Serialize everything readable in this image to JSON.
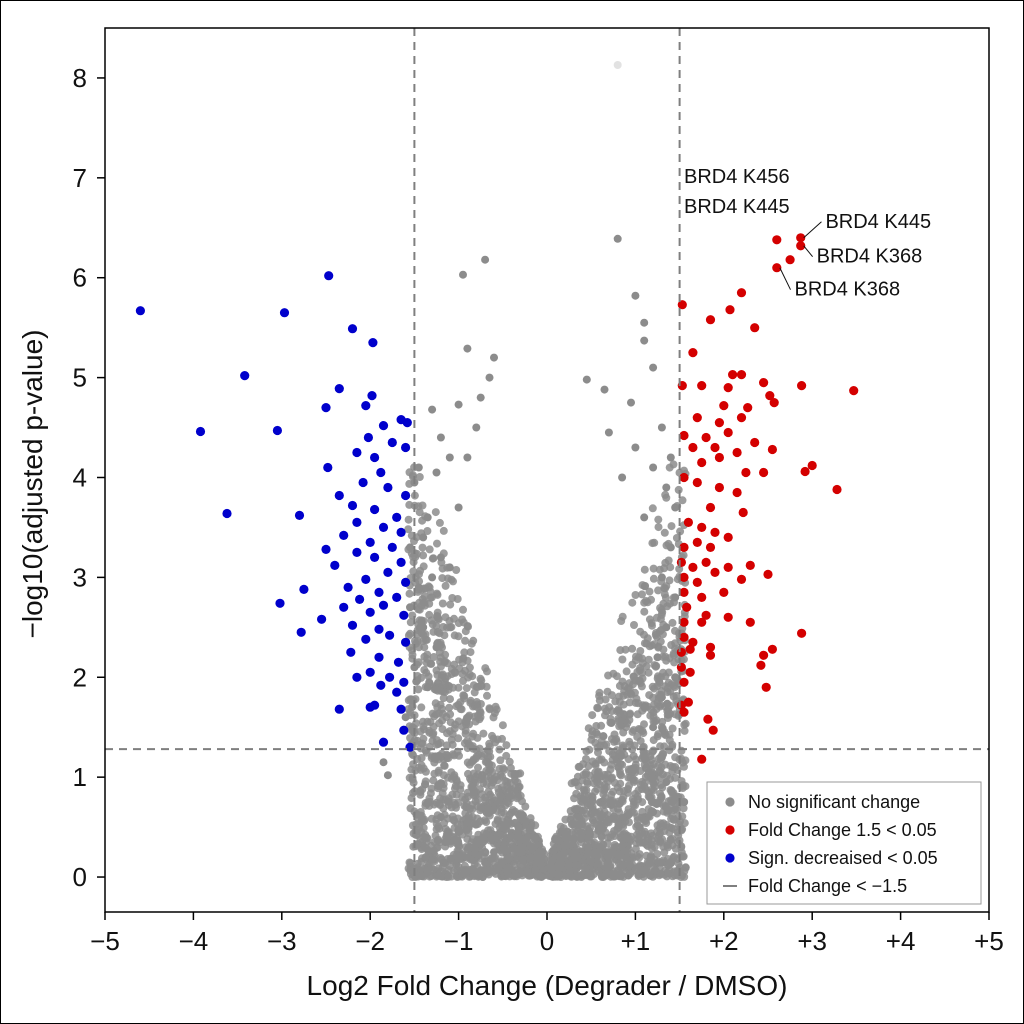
{
  "chart_data": {
    "type": "scatter",
    "title": "",
    "xlabel": "Log2 Fold Change (Degrader / DMSO)",
    "ylabel": "−log10(adjusted p-value)",
    "xlim": [
      -5,
      5
    ],
    "ylim": [
      -0.35,
      8.5
    ],
    "x_ticks": [
      -5,
      -4,
      -3,
      -2,
      -1,
      0,
      1,
      2,
      3,
      4,
      5
    ],
    "x_tick_labels": [
      "−5",
      "−4",
      "−3",
      "−2",
      "−1",
      "0",
      "+1",
      "+2",
      "+3",
      "+4",
      "+5"
    ],
    "y_ticks": [
      0,
      1,
      2,
      3,
      4,
      5,
      6,
      7,
      8
    ],
    "y_tick_labels": [
      "0",
      "1",
      "2",
      "3",
      "4",
      "5",
      "6",
      "7",
      "8"
    ],
    "thresholds": {
      "x_left": -1.5,
      "x_right": 1.5,
      "y": 1.28
    },
    "grid": false,
    "legend_position": "bottom-right",
    "colors": {
      "ns": "#8c8c8c",
      "up": "#d40000",
      "down": "#0000cc",
      "threshold": "#7f7f7f"
    },
    "series": [
      {
        "name": "No significant change",
        "points": [
          [
            -0.95,
            6.03
          ],
          [
            -0.7,
            6.18
          ],
          [
            -0.9,
            5.29
          ],
          [
            -0.6,
            5.2
          ],
          [
            -1.3,
            4.68
          ],
          [
            -0.65,
            5.0
          ],
          [
            -0.75,
            4.8
          ],
          [
            -1.0,
            4.73
          ],
          [
            -0.8,
            4.5
          ],
          [
            -1.2,
            4.4
          ],
          [
            -1.1,
            4.2
          ],
          [
            -0.9,
            4.2
          ],
          [
            -1.45,
            4.1
          ],
          [
            -1.25,
            4.05
          ],
          [
            -1.5,
            3.95
          ],
          [
            -1.35,
            3.6
          ],
          [
            -1.0,
            3.7
          ],
          [
            -1.55,
            3.3
          ],
          [
            -1.4,
            3.4
          ],
          [
            -1.2,
            3.2
          ],
          [
            -1.1,
            3.1
          ],
          [
            -1.3,
            3.0
          ],
          [
            -1.45,
            2.9
          ],
          [
            -1.55,
            2.7
          ],
          [
            -1.4,
            2.5
          ],
          [
            -1.25,
            2.3
          ],
          [
            -1.5,
            2.1
          ],
          [
            -1.35,
            1.9
          ],
          [
            -1.6,
            1.6
          ],
          [
            -1.8,
            1.02
          ],
          [
            -1.85,
            1.15
          ],
          [
            -1.2,
            0.6
          ],
          [
            -1.15,
            0.35
          ],
          [
            -1.0,
            0.45
          ],
          [
            -0.9,
            0.55
          ],
          [
            -0.6,
            0.25
          ],
          [
            0.8,
            8.13
          ],
          [
            0.8,
            6.39
          ],
          [
            1.0,
            5.82
          ],
          [
            1.1,
            5.55
          ],
          [
            1.1,
            5.37
          ],
          [
            1.2,
            5.1
          ],
          [
            0.45,
            4.98
          ],
          [
            0.65,
            4.88
          ],
          [
            0.95,
            4.75
          ],
          [
            0.7,
            4.45
          ],
          [
            1.3,
            4.5
          ],
          [
            1.0,
            4.3
          ],
          [
            1.4,
            4.2
          ],
          [
            1.2,
            4.1
          ],
          [
            0.85,
            4.0
          ],
          [
            1.35,
            3.9
          ],
          [
            1.45,
            3.7
          ],
          [
            1.1,
            3.6
          ],
          [
            1.4,
            3.3
          ],
          [
            1.3,
            3.0
          ],
          [
            1.45,
            2.8
          ],
          [
            1.35,
            2.5
          ],
          [
            1.25,
            2.2
          ],
          [
            1.45,
            2.0
          ],
          [
            1.3,
            1.8
          ],
          [
            1.2,
            1.5
          ],
          [
            1.3,
            1.2
          ],
          [
            1.35,
            0.95
          ],
          [
            1.42,
            0.75
          ],
          [
            1.55,
            0.75
          ],
          [
            1.2,
            0.65
          ],
          [
            1.05,
            0.5
          ],
          [
            0.9,
            0.4
          ],
          [
            0.6,
            0.3
          ],
          [
            0.35,
            0.2
          ],
          [
            0.25,
            0.12
          ]
        ]
      },
      {
        "name": "Fold Change 1.5 < 0.05",
        "points": [
          [
            2.6,
            6.38
          ],
          [
            2.87,
            6.4
          ],
          [
            2.87,
            6.32
          ],
          [
            2.75,
            6.18
          ],
          [
            2.6,
            6.1
          ],
          [
            1.53,
            5.73
          ],
          [
            2.2,
            5.85
          ],
          [
            2.07,
            5.68
          ],
          [
            1.85,
            5.58
          ],
          [
            2.35,
            5.5
          ],
          [
            1.65,
            5.25
          ],
          [
            2.1,
            5.03
          ],
          [
            2.2,
            5.03
          ],
          [
            1.53,
            4.92
          ],
          [
            1.75,
            4.92
          ],
          [
            2.05,
            4.9
          ],
          [
            2.45,
            4.95
          ],
          [
            2.88,
            4.92
          ],
          [
            3.47,
            4.87
          ],
          [
            2.0,
            4.72
          ],
          [
            2.27,
            4.7
          ],
          [
            2.52,
            4.82
          ],
          [
            2.57,
            4.75
          ],
          [
            1.7,
            4.6
          ],
          [
            1.95,
            4.55
          ],
          [
            2.2,
            4.6
          ],
          [
            1.55,
            4.42
          ],
          [
            1.8,
            4.4
          ],
          [
            2.05,
            4.45
          ],
          [
            2.35,
            4.35
          ],
          [
            1.65,
            4.3
          ],
          [
            1.9,
            4.3
          ],
          [
            2.15,
            4.25
          ],
          [
            2.55,
            4.28
          ],
          [
            1.75,
            4.15
          ],
          [
            1.95,
            4.2
          ],
          [
            2.25,
            4.05
          ],
          [
            2.45,
            4.05
          ],
          [
            3.0,
            4.12
          ],
          [
            2.92,
            4.06
          ],
          [
            3.28,
            3.88
          ],
          [
            1.55,
            4.0
          ],
          [
            1.7,
            3.95
          ],
          [
            1.95,
            3.9
          ],
          [
            2.15,
            3.85
          ],
          [
            1.85,
            3.7
          ],
          [
            2.22,
            3.65
          ],
          [
            1.6,
            3.55
          ],
          [
            1.75,
            3.5
          ],
          [
            1.9,
            3.45
          ],
          [
            2.05,
            3.4
          ],
          [
            1.55,
            3.3
          ],
          [
            1.7,
            3.35
          ],
          [
            1.85,
            3.3
          ],
          [
            1.52,
            3.15
          ],
          [
            1.65,
            3.1
          ],
          [
            1.8,
            3.15
          ],
          [
            2.05,
            3.1
          ],
          [
            2.3,
            3.12
          ],
          [
            1.55,
            3.0
          ],
          [
            1.7,
            2.95
          ],
          [
            1.9,
            3.05
          ],
          [
            2.2,
            2.98
          ],
          [
            2.5,
            3.03
          ],
          [
            1.55,
            2.85
          ],
          [
            1.75,
            2.8
          ],
          [
            2.0,
            2.85
          ],
          [
            1.58,
            2.7
          ],
          [
            1.8,
            2.62
          ],
          [
            1.55,
            2.55
          ],
          [
            1.75,
            2.55
          ],
          [
            2.05,
            2.6
          ],
          [
            2.3,
            2.55
          ],
          [
            1.55,
            2.4
          ],
          [
            1.65,
            2.35
          ],
          [
            2.88,
            2.44
          ],
          [
            1.52,
            2.25
          ],
          [
            1.62,
            2.28
          ],
          [
            1.85,
            2.3
          ],
          [
            2.45,
            2.22
          ],
          [
            2.55,
            2.28
          ],
          [
            1.52,
            2.1
          ],
          [
            1.62,
            2.05
          ],
          [
            1.85,
            2.22
          ],
          [
            2.42,
            2.12
          ],
          [
            1.55,
            1.95
          ],
          [
            1.6,
            1.75
          ],
          [
            1.55,
            1.65
          ],
          [
            1.52,
            1.72
          ],
          [
            2.48,
            1.9
          ],
          [
            1.82,
            1.58
          ],
          [
            1.88,
            1.47
          ],
          [
            1.75,
            1.18
          ]
        ]
      },
      {
        "name": "Sign. decreaised < 0.05",
        "points": [
          [
            -4.6,
            5.67
          ],
          [
            -2.47,
            6.02
          ],
          [
            -2.97,
            5.65
          ],
          [
            -2.2,
            5.49
          ],
          [
            -1.97,
            5.35
          ],
          [
            -3.42,
            5.02
          ],
          [
            -2.35,
            4.89
          ],
          [
            -3.92,
            4.46
          ],
          [
            -3.05,
            4.47
          ],
          [
            -2.5,
            4.7
          ],
          [
            -2.05,
            4.72
          ],
          [
            -1.98,
            4.82
          ],
          [
            -1.65,
            4.58
          ],
          [
            -1.58,
            4.55
          ],
          [
            -1.85,
            4.52
          ],
          [
            -2.02,
            4.4
          ],
          [
            -1.75,
            4.35
          ],
          [
            -2.15,
            4.25
          ],
          [
            -1.95,
            4.2
          ],
          [
            -1.6,
            4.3
          ],
          [
            -2.48,
            4.1
          ],
          [
            -1.88,
            4.05
          ],
          [
            -2.08,
            3.95
          ],
          [
            -1.8,
            3.9
          ],
          [
            -2.35,
            3.82
          ],
          [
            -1.6,
            3.82
          ],
          [
            -2.2,
            3.72
          ],
          [
            -1.95,
            3.68
          ],
          [
            -1.7,
            3.6
          ],
          [
            -3.62,
            3.64
          ],
          [
            -2.8,
            3.62
          ],
          [
            -2.15,
            3.55
          ],
          [
            -1.85,
            3.5
          ],
          [
            -1.65,
            3.45
          ],
          [
            -2.3,
            3.42
          ],
          [
            -2.0,
            3.35
          ],
          [
            -1.75,
            3.3
          ],
          [
            -2.5,
            3.28
          ],
          [
            -2.15,
            3.25
          ],
          [
            -1.95,
            3.2
          ],
          [
            -1.65,
            3.15
          ],
          [
            -2.4,
            3.12
          ],
          [
            -1.8,
            3.05
          ],
          [
            -2.05,
            2.98
          ],
          [
            -1.6,
            2.95
          ],
          [
            -2.25,
            2.9
          ],
          [
            -1.9,
            2.85
          ],
          [
            -2.75,
            2.88
          ],
          [
            -1.7,
            2.8
          ],
          [
            -2.12,
            2.78
          ],
          [
            -1.85,
            2.72
          ],
          [
            -2.3,
            2.7
          ],
          [
            -3.02,
            2.74
          ],
          [
            -2.0,
            2.65
          ],
          [
            -1.62,
            2.62
          ],
          [
            -2.55,
            2.58
          ],
          [
            -2.2,
            2.52
          ],
          [
            -1.9,
            2.48
          ],
          [
            -2.78,
            2.45
          ],
          [
            -1.78,
            2.42
          ],
          [
            -2.05,
            2.38
          ],
          [
            -1.6,
            2.35
          ],
          [
            -2.22,
            2.25
          ],
          [
            -1.9,
            2.2
          ],
          [
            -1.68,
            2.15
          ],
          [
            -2.0,
            2.05
          ],
          [
            -1.78,
            2.0
          ],
          [
            -2.15,
            2.0
          ],
          [
            -1.62,
            1.95
          ],
          [
            -1.88,
            1.92
          ],
          [
            -1.7,
            1.85
          ],
          [
            -2.0,
            1.7
          ],
          [
            -2.35,
            1.68
          ],
          [
            -1.65,
            1.68
          ],
          [
            -1.95,
            1.72
          ],
          [
            -1.62,
            1.47
          ],
          [
            -1.55,
            1.3
          ],
          [
            -1.85,
            1.35
          ]
        ]
      }
    ],
    "annotations": [
      {
        "text": "BRD4 K456",
        "x": 1.55,
        "y": 6.95,
        "anchor": "start",
        "target": null
      },
      {
        "text": "BRD4 K445",
        "x": 1.55,
        "y": 6.65,
        "anchor": "start",
        "target": null
      },
      {
        "text": "BRD4 K445",
        "x": 3.15,
        "y": 6.5,
        "anchor": "start",
        "target": [
          2.87,
          6.4
        ]
      },
      {
        "text": "BRD4 K368",
        "x": 3.05,
        "y": 6.15,
        "anchor": "start",
        "target": [
          2.87,
          6.32
        ]
      },
      {
        "text": "BRD4 K368",
        "x": 2.8,
        "y": 5.82,
        "anchor": "start",
        "target": [
          2.6,
          6.1
        ]
      }
    ],
    "legend": [
      {
        "label": "No significant change",
        "marker": "dot",
        "color_key": "ns"
      },
      {
        "label": "Fold Change 1.5 < 0.05",
        "marker": "dot",
        "color_key": "up"
      },
      {
        "label": "Sign. decreaised < 0.05",
        "marker": "dot",
        "color_key": "down"
      },
      {
        "label": "Fold Change < −1.5",
        "marker": "dash",
        "color_key": "threshold"
      }
    ]
  }
}
